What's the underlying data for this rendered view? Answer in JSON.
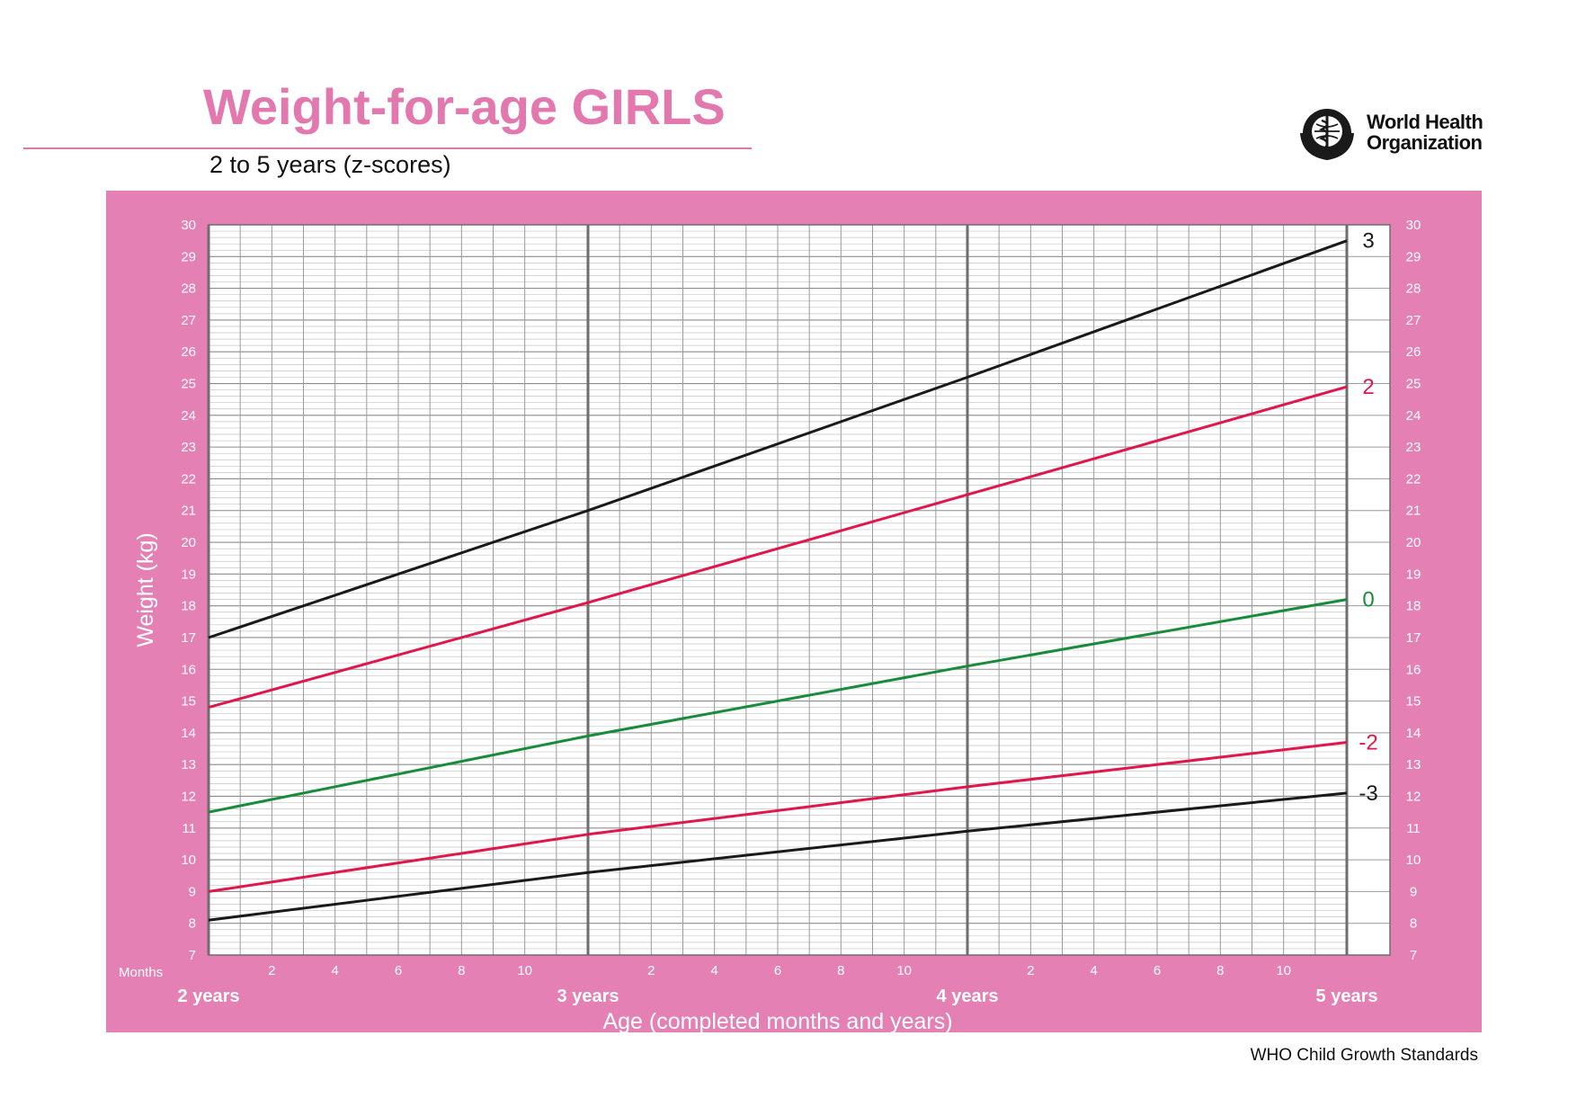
{
  "header": {
    "title": "Weight-for-age GIRLS",
    "subtitle": "2 to 5 years (z-scores)",
    "logo_line1": "World Health",
    "logo_line2": "Organization",
    "logo_icon": "who-emblem-icon"
  },
  "footer": {
    "text": "WHO Child Growth Standards"
  },
  "colors": {
    "brand_pink": "#e278ad",
    "panel_pink": "#e580b5",
    "z3": "#1a1a1a",
    "z2": "#e0174b",
    "z0": "#198c3c"
  },
  "chart_data": {
    "type": "line",
    "title": "Weight-for-age GIRLS",
    "subtitle": "2 to 5 years (z-scores)",
    "xlabel": "Age (completed months and years)",
    "ylabel": "Weight (kg)",
    "xlim": [
      24,
      60
    ],
    "ylim": [
      7,
      30
    ],
    "y_ticks": [
      7,
      8,
      9,
      10,
      11,
      12,
      13,
      14,
      15,
      16,
      17,
      18,
      19,
      20,
      21,
      22,
      23,
      24,
      25,
      26,
      27,
      28,
      29,
      30
    ],
    "months_label": "Months",
    "month_ticks": [
      2,
      4,
      6,
      8,
      10
    ],
    "year_ticks": [
      {
        "x": 24,
        "label": "2 years"
      },
      {
        "x": 36,
        "label": "3 years"
      },
      {
        "x": 48,
        "label": "4 years"
      },
      {
        "x": 60,
        "label": "5 years"
      }
    ],
    "grid": true,
    "series": [
      {
        "name": "3",
        "color": "#1a1a1a",
        "x": [
          24,
          36,
          48,
          60
        ],
        "values": [
          17.0,
          21.0,
          25.2,
          29.5
        ]
      },
      {
        "name": "2",
        "color": "#e0174b",
        "x": [
          24,
          36,
          48,
          60
        ],
        "values": [
          14.8,
          18.1,
          21.5,
          24.9
        ]
      },
      {
        "name": "0",
        "color": "#198c3c",
        "x": [
          24,
          36,
          48,
          60
        ],
        "values": [
          11.5,
          13.9,
          16.1,
          18.2
        ]
      },
      {
        "name": "-2",
        "color": "#e0174b",
        "x": [
          24,
          36,
          48,
          60
        ],
        "values": [
          9.0,
          10.8,
          12.3,
          13.7
        ]
      },
      {
        "name": "-3",
        "color": "#1a1a1a",
        "x": [
          24,
          36,
          48,
          60
        ],
        "values": [
          8.1,
          9.6,
          10.9,
          12.1
        ]
      }
    ]
  }
}
